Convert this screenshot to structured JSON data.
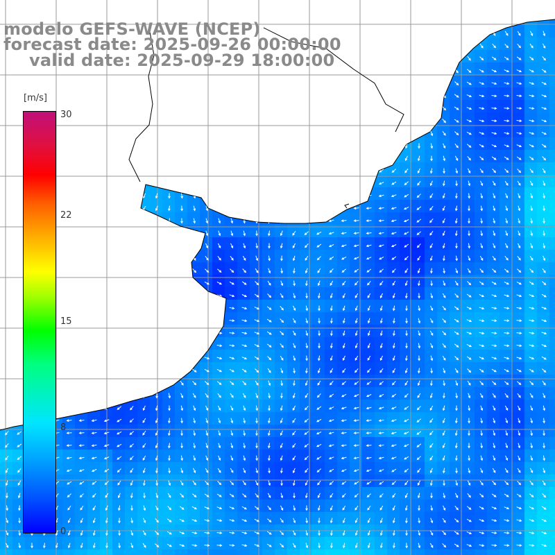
{
  "title_lines": [
    "modelo GEFS-WAVE (NCEP)",
    "forecast date: 2025-09-26 00:00:00",
    "valid date: 2025-09-29 18:00:00"
  ],
  "colorbar": {
    "units": "[m/s]",
    "min": 0,
    "max": 30,
    "ticks": [
      "0",
      "8",
      "15",
      "22",
      "30"
    ],
    "colors": [
      "#0000ff",
      "#00a8ff",
      "#00e5ff",
      "#00ff00",
      "#ffff00",
      "#ff0000",
      "#c0107a"
    ]
  },
  "map": {
    "field": "wind speed with direction arrows",
    "land_color": "#ffffff",
    "coastline_color": "#000000",
    "grid_color": "#999999",
    "arrow_color": "#ffffff"
  }
}
